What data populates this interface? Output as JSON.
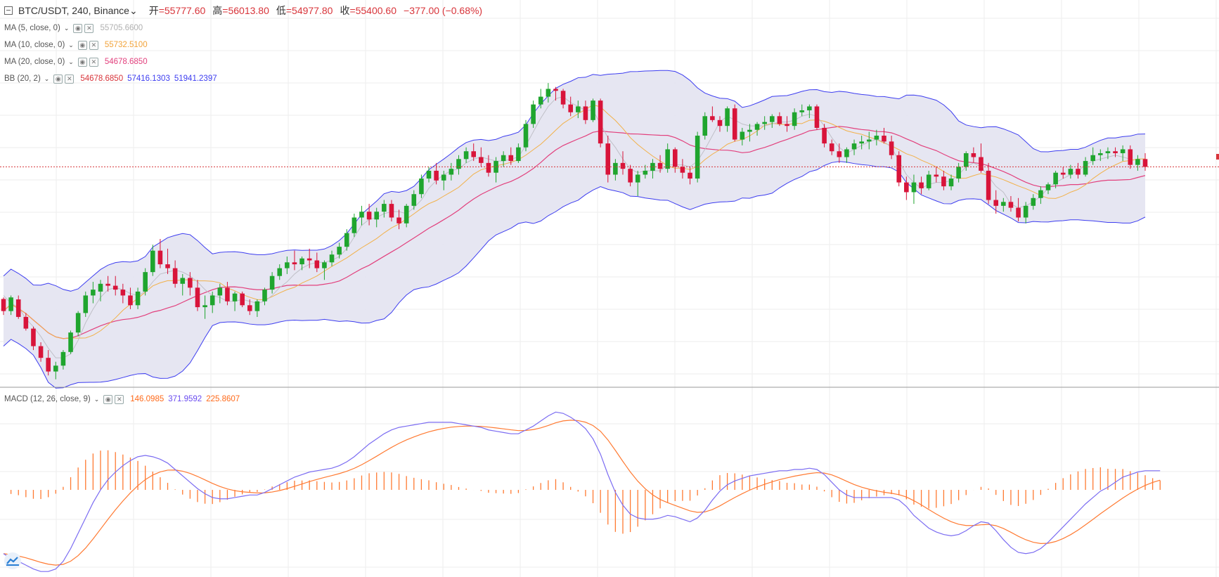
{
  "header": {
    "symbol": "BTC/USDT, 240, Binance",
    "open_label": "开",
    "open": "=55777.60",
    "high_label": "高",
    "high": "=56013.80",
    "low_label": "低",
    "low": "=54977.80",
    "close_label": "收",
    "close": "=55400.60",
    "change": "−377.00 (−0.68%)"
  },
  "indicators": [
    {
      "name": "MA (5, close, 0)",
      "values": [
        "55705.6600"
      ],
      "colors": [
        "#b0b0b0"
      ]
    },
    {
      "name": "MA (10, close, 0)",
      "values": [
        "55732.5100"
      ],
      "colors": [
        "#f2a33a"
      ]
    },
    {
      "name": "MA (20, close, 0)",
      "values": [
        "54678.6850"
      ],
      "colors": [
        "#e2407d"
      ]
    },
    {
      "name": "BB (20, 2)",
      "values": [
        "54678.6850",
        "57416.1303",
        "51941.2397"
      ],
      "colors": [
        "#d8343a",
        "#3d3df0",
        "#3d3df0"
      ]
    }
  ],
  "macd_legend": {
    "name": "MACD (12, 26, close, 9)",
    "values": [
      "146.0985",
      "371.9592",
      "225.8607"
    ],
    "colors": [
      "#ff6a1a",
      "#6a4cf0",
      "#ff6a1a"
    ]
  },
  "colors": {
    "up": "#1fa52e",
    "down": "#d8143a",
    "bb_band": "#3d3df0",
    "bb_fill": "#e3e3f1",
    "ma5": "#c0c0c8",
    "ma10": "#f2b14a",
    "ma20": "#e2407d",
    "macd": "#7b6cf2",
    "signal": "#ff7a32",
    "hist": "#ff7a32",
    "grid": "#eeeeee",
    "price_line": "#d8343a"
  },
  "chart_data": [
    {
      "type": "candlestick",
      "title": "BTC/USDT, 240, Binance",
      "ylim": [
        49800,
        59500
      ],
      "ohlc": [
        [
          52010,
          52050,
          51600,
          51700
        ],
        [
          51700,
          52100,
          51600,
          52050
        ],
        [
          52000,
          52100,
          51500,
          51550
        ],
        [
          51550,
          51650,
          51200,
          51250
        ],
        [
          51250,
          51300,
          50700,
          50800
        ],
        [
          50800,
          50900,
          50400,
          50500
        ],
        [
          50500,
          50700,
          50050,
          50150
        ],
        [
          50150,
          50400,
          49950,
          50300
        ],
        [
          50300,
          50700,
          50200,
          50650
        ],
        [
          50650,
          51200,
          50600,
          51150
        ],
        [
          51150,
          51700,
          51050,
          51650
        ],
        [
          51650,
          52200,
          51550,
          52100
        ],
        [
          52100,
          52450,
          51900,
          52250
        ],
        [
          52200,
          52500,
          51950,
          52400
        ],
        [
          52400,
          52600,
          52200,
          52350
        ],
        [
          52350,
          52600,
          52100,
          52250
        ],
        [
          52250,
          52400,
          51900,
          52100
        ],
        [
          52100,
          52300,
          51750,
          51850
        ],
        [
          51850,
          52300,
          51750,
          52200
        ],
        [
          52200,
          52800,
          52100,
          52700
        ],
        [
          52700,
          53400,
          52600,
          53250
        ],
        [
          53250,
          53550,
          52800,
          52900
        ],
        [
          52900,
          53300,
          52650,
          52800
        ],
        [
          52800,
          53000,
          52300,
          52400
        ],
        [
          52400,
          52650,
          52100,
          52550
        ],
        [
          52550,
          52700,
          52100,
          52300
        ],
        [
          52300,
          52500,
          51700,
          51800
        ],
        [
          51800,
          52100,
          51500,
          51850
        ],
        [
          51850,
          52200,
          51650,
          52100
        ],
        [
          52100,
          52400,
          51900,
          52300
        ],
        [
          52300,
          52450,
          51850,
          51950
        ],
        [
          51950,
          52200,
          51700,
          52150
        ],
        [
          52150,
          52200,
          51800,
          51850
        ],
        [
          51850,
          52000,
          51600,
          51700
        ],
        [
          51700,
          52000,
          51550,
          51950
        ],
        [
          51950,
          52300,
          51850,
          52250
        ],
        [
          52250,
          52700,
          52150,
          52600
        ],
        [
          52600,
          52900,
          52500,
          52800
        ],
        [
          52800,
          53100,
          52650,
          52950
        ],
        [
          52950,
          53250,
          52750,
          52900
        ],
        [
          52900,
          53100,
          52750,
          53050
        ],
        [
          53050,
          53300,
          52800,
          53000
        ],
        [
          53000,
          53200,
          52700,
          52800
        ],
        [
          52800,
          53000,
          52500,
          52950
        ],
        [
          52950,
          53250,
          52850,
          53150
        ],
        [
          53150,
          53450,
          53050,
          53350
        ],
        [
          53350,
          53800,
          53250,
          53700
        ],
        [
          53700,
          54200,
          53600,
          54100
        ],
        [
          54100,
          54400,
          53900,
          54250
        ],
        [
          54250,
          54450,
          53900,
          54050
        ],
        [
          54050,
          54350,
          53850,
          54250
        ],
        [
          54250,
          54550,
          54100,
          54450
        ],
        [
          54450,
          54550,
          54000,
          54100
        ],
        [
          54100,
          54300,
          53800,
          53950
        ],
        [
          53950,
          54450,
          53850,
          54400
        ],
        [
          54400,
          54800,
          54300,
          54700
        ],
        [
          54700,
          55200,
          54600,
          55100
        ],
        [
          55100,
          55400,
          55000,
          55300
        ],
        [
          55300,
          55500,
          54950,
          55050
        ],
        [
          55050,
          55300,
          54800,
          55200
        ],
        [
          55200,
          55500,
          55050,
          55350
        ],
        [
          55350,
          55700,
          55200,
          55600
        ],
        [
          55600,
          55900,
          55500,
          55800
        ],
        [
          55800,
          56000,
          55550,
          55650
        ],
        [
          55650,
          55900,
          55400,
          55500
        ],
        [
          55500,
          55700,
          55150,
          55250
        ],
        [
          55250,
          55650,
          55000,
          55550
        ],
        [
          55550,
          55800,
          55400,
          55700
        ],
        [
          55700,
          55900,
          55450,
          55550
        ],
        [
          55550,
          56000,
          55500,
          55900
        ],
        [
          55900,
          56600,
          55800,
          56500
        ],
        [
          56500,
          57100,
          56400,
          57000
        ],
        [
          57000,
          57400,
          56900,
          57200
        ],
        [
          57200,
          57550,
          57050,
          57400
        ],
        [
          57400,
          57450,
          57100,
          57350
        ],
        [
          57350,
          57400,
          56900,
          57000
        ],
        [
          57000,
          57200,
          56700,
          56800
        ],
        [
          56800,
          57100,
          56650,
          56950
        ],
        [
          56950,
          57100,
          56500,
          56600
        ],
        [
          56600,
          57150,
          56550,
          57100
        ],
        [
          57100,
          57150,
          55900,
          56000
        ],
        [
          56000,
          56200,
          55000,
          55200
        ],
        [
          55200,
          55600,
          55050,
          55500
        ],
        [
          55500,
          55800,
          55200,
          55350
        ],
        [
          55350,
          55450,
          54900,
          55000
        ],
        [
          55000,
          55300,
          54650,
          55200
        ],
        [
          55200,
          55450,
          55100,
          55300
        ],
        [
          55300,
          55600,
          55100,
          55500
        ],
        [
          55500,
          55700,
          55250,
          55350
        ],
        [
          55350,
          56000,
          55250,
          55850
        ],
        [
          55850,
          55900,
          55250,
          55400
        ],
        [
          55400,
          55600,
          55100,
          55250
        ],
        [
          55250,
          55400,
          54950,
          55100
        ],
        [
          55100,
          56300,
          55000,
          56200
        ],
        [
          56200,
          56800,
          56100,
          56700
        ],
        [
          56700,
          56950,
          56550,
          56600
        ],
        [
          56600,
          56700,
          56300,
          56450
        ],
        [
          56450,
          56950,
          56300,
          56900
        ],
        [
          56900,
          57000,
          56050,
          56100
        ],
        [
          56100,
          56400,
          55950,
          56300
        ],
        [
          56300,
          56500,
          56050,
          56350
        ],
        [
          56350,
          56550,
          56200,
          56500
        ],
        [
          56500,
          56700,
          56350,
          56550
        ],
        [
          56550,
          56750,
          56400,
          56700
        ],
        [
          56700,
          56800,
          56450,
          56500
        ],
        [
          56500,
          56700,
          56300,
          56450
        ],
        [
          56450,
          56900,
          56350,
          56800
        ],
        [
          56800,
          57000,
          56700,
          56850
        ],
        [
          56850,
          57000,
          56650,
          56950
        ],
        [
          56950,
          57000,
          56350,
          56400
        ],
        [
          56400,
          56500,
          55900,
          56000
        ],
        [
          56000,
          56100,
          55700,
          55800
        ],
        [
          55800,
          56000,
          55500,
          55650
        ],
        [
          55650,
          55900,
          55500,
          55850
        ],
        [
          55850,
          56100,
          55700,
          56000
        ],
        [
          56000,
          56200,
          55850,
          56050
        ],
        [
          56050,
          56300,
          55850,
          56100
        ],
        [
          56100,
          56350,
          55950,
          56200
        ],
        [
          56200,
          56400,
          56000,
          56050
        ],
        [
          56050,
          56200,
          55600,
          55700
        ],
        [
          55700,
          55800,
          54900,
          55000
        ],
        [
          55000,
          55150,
          54550,
          54750
        ],
        [
          54750,
          55200,
          54450,
          55000
        ],
        [
          55000,
          55150,
          54700,
          54850
        ],
        [
          54850,
          55300,
          54800,
          55200
        ],
        [
          55200,
          55400,
          55000,
          55150
        ],
        [
          55150,
          55300,
          54800,
          54900
        ],
        [
          54900,
          55200,
          54800,
          55100
        ],
        [
          55100,
          55500,
          55000,
          55400
        ],
        [
          55400,
          55800,
          55300,
          55750
        ],
        [
          55750,
          55900,
          55500,
          55650
        ],
        [
          55650,
          56000,
          55250,
          55300
        ],
        [
          55300,
          55500,
          54450,
          54550
        ],
        [
          54550,
          54800,
          54200,
          54400
        ],
        [
          54400,
          54600,
          54250,
          54500
        ],
        [
          54500,
          54650,
          54250,
          54350
        ],
        [
          54350,
          54600,
          54000,
          54100
        ],
        [
          54100,
          54500,
          53950,
          54400
        ],
        [
          54400,
          54700,
          54300,
          54600
        ],
        [
          54600,
          54900,
          54450,
          54800
        ],
        [
          54800,
          55000,
          54700,
          54950
        ],
        [
          54950,
          55300,
          54850,
          55250
        ],
        [
          55250,
          55400,
          55100,
          55200
        ],
        [
          55200,
          55450,
          55100,
          55350
        ],
        [
          55350,
          55500,
          55100,
          55200
        ],
        [
          55200,
          55650,
          55150,
          55550
        ],
        [
          55550,
          55900,
          55450,
          55700
        ],
        [
          55700,
          55850,
          55550,
          55750
        ],
        [
          55750,
          55900,
          55600,
          55800
        ],
        [
          55800,
          55900,
          55650,
          55750
        ],
        [
          55750,
          55950,
          55550,
          55850
        ],
        [
          55850,
          55950,
          55350,
          55450
        ],
        [
          55450,
          55700,
          55300,
          55600
        ],
        [
          55600,
          55750,
          55300,
          55400
        ]
      ],
      "ma5": [
        52100,
        51900,
        51800,
        51500,
        51300,
        51050,
        50750,
        50500,
        50500,
        50600,
        50950,
        51400,
        51750,
        52050,
        52250,
        52300,
        52250,
        52150,
        52100,
        52200,
        52450,
        52650,
        52700,
        52750,
        52700,
        52600,
        52450,
        52250,
        52100,
        52050,
        51950,
        51950,
        52000,
        51950,
        51900,
        51950,
        52100,
        52300,
        52450,
        52650,
        52800,
        52900,
        52950,
        52950,
        53000,
        53100,
        53300,
        53600,
        53900,
        54050,
        54100,
        54200,
        54250,
        54250,
        54200,
        54350,
        54550,
        54850,
        55050,
        55200,
        55300,
        55350,
        55500,
        55600,
        55650,
        55600,
        55550,
        55550,
        55600,
        55650,
        55950,
        56300,
        56650,
        56950,
        57150,
        57200,
        57050,
        56950,
        56850,
        56850,
        56500,
        56150,
        55900,
        55600,
        55350,
        55250,
        55300,
        55300,
        55300,
        55450,
        55450,
        55450,
        55400,
        55550,
        55850,
        56200,
        56550,
        56700,
        56600,
        56500,
        56450,
        56450,
        56450,
        56500,
        56550,
        56550,
        56600,
        56700,
        56750,
        56700,
        56450,
        56150,
        55900,
        55750,
        55850,
        55950,
        56050,
        56100,
        56050,
        55900,
        55550,
        55200,
        55000,
        54850,
        54950,
        55000,
        55000,
        55050,
        55200,
        55400,
        55500,
        55400,
        55150,
        54900,
        54750,
        54450,
        54350,
        54400,
        54500,
        54650,
        54850,
        55000,
        55100,
        55200,
        55300,
        55450,
        55550,
        55600,
        55650,
        55700,
        55650,
        55600
      ]
    },
    {
      "type": "macd",
      "title": "MACD (12, 26, close, 9)",
      "ylim": [
        -650,
        700
      ],
      "macd": [
        -500,
        -540,
        -560,
        -590,
        -620,
        -640,
        -640,
        -620,
        -560,
        -460,
        -340,
        -220,
        -100,
        0,
        80,
        140,
        190,
        230,
        260,
        270,
        260,
        240,
        210,
        160,
        110,
        60,
        10,
        -30,
        -60,
        -70,
        -70,
        -60,
        -50,
        -40,
        -40,
        -20,
        10,
        40,
        70,
        100,
        120,
        140,
        150,
        160,
        170,
        190,
        220,
        260,
        310,
        360,
        400,
        440,
        470,
        490,
        500,
        510,
        520,
        530,
        530,
        530,
        530,
        520,
        510,
        500,
        490,
        470,
        460,
        450,
        440,
        440,
        470,
        500,
        540,
        580,
        610,
        600,
        570,
        530,
        480,
        400,
        280,
        120,
        -20,
        -120,
        -190,
        -220,
        -230,
        -230,
        -220,
        -200,
        -210,
        -230,
        -250,
        -220,
        -160,
        -80,
        -10,
        40,
        70,
        90,
        110,
        120,
        130,
        140,
        150,
        150,
        160,
        160,
        170,
        160,
        120,
        60,
        0,
        -40,
        -60,
        -60,
        -60,
        -60,
        -60,
        -60,
        -80,
        -130,
        -200,
        -250,
        -300,
        -330,
        -350,
        -360,
        -350,
        -320,
        -280,
        -250,
        -260,
        -320,
        -390,
        -450,
        -490,
        -500,
        -490,
        -460,
        -410,
        -350,
        -290,
        -230,
        -170,
        -110,
        -60,
        -10,
        20,
        60,
        100,
        120,
        140,
        150,
        150,
        150
      ]
    }
  ]
}
